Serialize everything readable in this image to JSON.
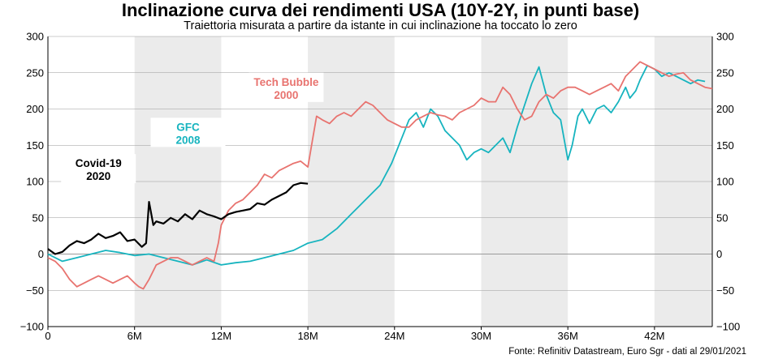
{
  "header": {
    "title": "Inclinazione curva dei rendimenti USA (10Y-2Y, in punti base)",
    "subtitle": "Traiettoria misurata a partire da istante in cui inclinazione ha toccato lo zero"
  },
  "footer": {
    "source": "Fonte: Refinitiv Datastream, Euro Sgr - dati al 29/01/2021"
  },
  "colors": {
    "covid": "#000000",
    "gfc": "#17b4bf",
    "tech": "#e8736f",
    "shade": "#ebebeb",
    "grid": "#9a9a9a"
  },
  "chart_data": {
    "type": "line",
    "xlim": [
      0,
      46
    ],
    "ylim": [
      -100,
      300
    ],
    "x_ticks": [
      0,
      6,
      12,
      18,
      24,
      30,
      36,
      42
    ],
    "x_tick_labels": [
      "0",
      "6M",
      "12M",
      "18M",
      "24M",
      "30M",
      "36M",
      "42M"
    ],
    "y_ticks": [
      -100,
      -50,
      0,
      50,
      100,
      150,
      200,
      250,
      300
    ],
    "y_tick_labels": [
      "−100",
      "−50",
      "0",
      "50",
      "100",
      "150",
      "200",
      "250",
      "300"
    ],
    "shaded_ranges": [
      [
        6,
        12
      ],
      [
        18,
        24
      ],
      [
        30,
        36
      ],
      [
        42,
        46
      ]
    ],
    "annotations": [
      {
        "id": "covid",
        "lines": [
          "Covid-19",
          "2020"
        ],
        "x": 3.5,
        "y": 120
      },
      {
        "id": "gfc",
        "lines": [
          "GFC",
          "2008"
        ],
        "x": 9.7,
        "y": 170
      },
      {
        "id": "tech",
        "lines": [
          "Tech Bubble",
          "2000"
        ],
        "x": 16.5,
        "y": 232
      }
    ],
    "series": [
      {
        "id": "covid",
        "x": [
          0,
          0.5,
          1,
          1.5,
          2,
          2.5,
          3,
          3.5,
          4,
          4.5,
          5,
          5.5,
          6,
          6.5,
          6.8,
          7,
          7.3,
          7.5,
          8,
          8.5,
          9,
          9.5,
          10,
          10.5,
          11,
          11.5,
          12,
          12.5,
          13,
          13.5,
          14,
          14.5,
          15,
          15.5,
          16,
          16.5,
          17,
          17.5,
          18
        ],
        "values": [
          7,
          0,
          3,
          12,
          18,
          15,
          20,
          28,
          22,
          25,
          30,
          18,
          20,
          10,
          15,
          72,
          40,
          45,
          42,
          50,
          45,
          55,
          48,
          60,
          55,
          52,
          48,
          55,
          58,
          60,
          62,
          70,
          68,
          75,
          80,
          85,
          95,
          98,
          97
        ]
      },
      {
        "id": "gfc",
        "x": [
          0,
          1,
          2,
          3,
          4,
          5,
          6,
          7,
          8,
          9,
          10,
          11,
          12,
          13,
          14,
          15,
          16,
          17,
          18,
          19,
          20,
          21,
          22,
          23,
          23.8,
          24.5,
          25,
          25.5,
          26,
          26.5,
          27,
          27.5,
          28,
          28.5,
          29,
          29.5,
          30,
          30.5,
          31,
          31.5,
          32,
          32.5,
          33,
          33.5,
          34,
          34.5,
          35,
          35.5,
          36,
          36.3,
          36.7,
          37,
          37.5,
          38,
          38.5,
          39,
          39.5,
          40,
          40.3,
          40.7,
          41,
          41.5,
          42,
          42.5,
          43,
          43.5,
          44,
          44.5,
          45,
          45.5
        ],
        "values": [
          0,
          -10,
          -5,
          0,
          5,
          2,
          -2,
          0,
          -5,
          -10,
          -15,
          -8,
          -15,
          -12,
          -10,
          -5,
          0,
          5,
          15,
          20,
          35,
          55,
          75,
          95,
          125,
          160,
          185,
          195,
          175,
          200,
          190,
          170,
          160,
          150,
          130,
          140,
          145,
          140,
          150,
          160,
          140,
          175,
          205,
          235,
          258,
          220,
          195,
          185,
          130,
          150,
          190,
          200,
          180,
          200,
          205,
          195,
          210,
          230,
          215,
          225,
          240,
          260,
          255,
          245,
          250,
          245,
          240,
          235,
          240,
          238
        ]
      },
      {
        "id": "tech",
        "x": [
          0,
          0.5,
          1,
          1.5,
          2,
          2.5,
          3,
          3.5,
          4,
          4.5,
          5,
          5.5,
          6,
          6.3,
          6.6,
          7,
          7.5,
          8,
          8.5,
          9,
          9.5,
          10,
          10.5,
          11,
          11.5,
          11.8,
          12,
          12.5,
          13,
          13.5,
          14,
          14.5,
          15,
          15.5,
          16,
          16.5,
          17,
          17.5,
          18,
          18.3,
          18.6,
          19,
          19.5,
          20,
          20.5,
          21,
          21.5,
          22,
          22.5,
          23,
          23.5,
          24,
          24.5,
          25,
          25.5,
          26,
          26.5,
          27,
          27.5,
          28,
          28.5,
          29,
          29.5,
          30,
          30.5,
          31,
          31.5,
          32,
          32.5,
          33,
          33.5,
          34,
          34.5,
          35,
          35.5,
          36,
          36.5,
          37,
          37.5,
          38,
          38.5,
          39,
          39.5,
          40,
          40.5,
          41,
          41.5,
          42,
          42.5,
          43,
          43.5,
          44,
          44.5,
          45,
          45.5,
          46
        ],
        "values": [
          -5,
          -10,
          -20,
          -35,
          -45,
          -40,
          -35,
          -30,
          -35,
          -40,
          -35,
          -30,
          -40,
          -45,
          -48,
          -35,
          -15,
          -10,
          -5,
          -5,
          -10,
          -15,
          -10,
          -5,
          -10,
          15,
          40,
          60,
          70,
          75,
          85,
          95,
          110,
          105,
          115,
          120,
          125,
          128,
          120,
          155,
          190,
          185,
          180,
          190,
          195,
          190,
          200,
          210,
          205,
          195,
          185,
          180,
          175,
          175,
          185,
          190,
          195,
          192,
          190,
          185,
          195,
          200,
          205,
          215,
          210,
          210,
          230,
          220,
          200,
          185,
          190,
          210,
          220,
          215,
          225,
          230,
          230,
          225,
          220,
          225,
          230,
          235,
          225,
          245,
          255,
          265,
          260,
          255,
          250,
          245,
          248,
          250,
          240,
          235,
          230,
          228
        ]
      }
    ]
  }
}
